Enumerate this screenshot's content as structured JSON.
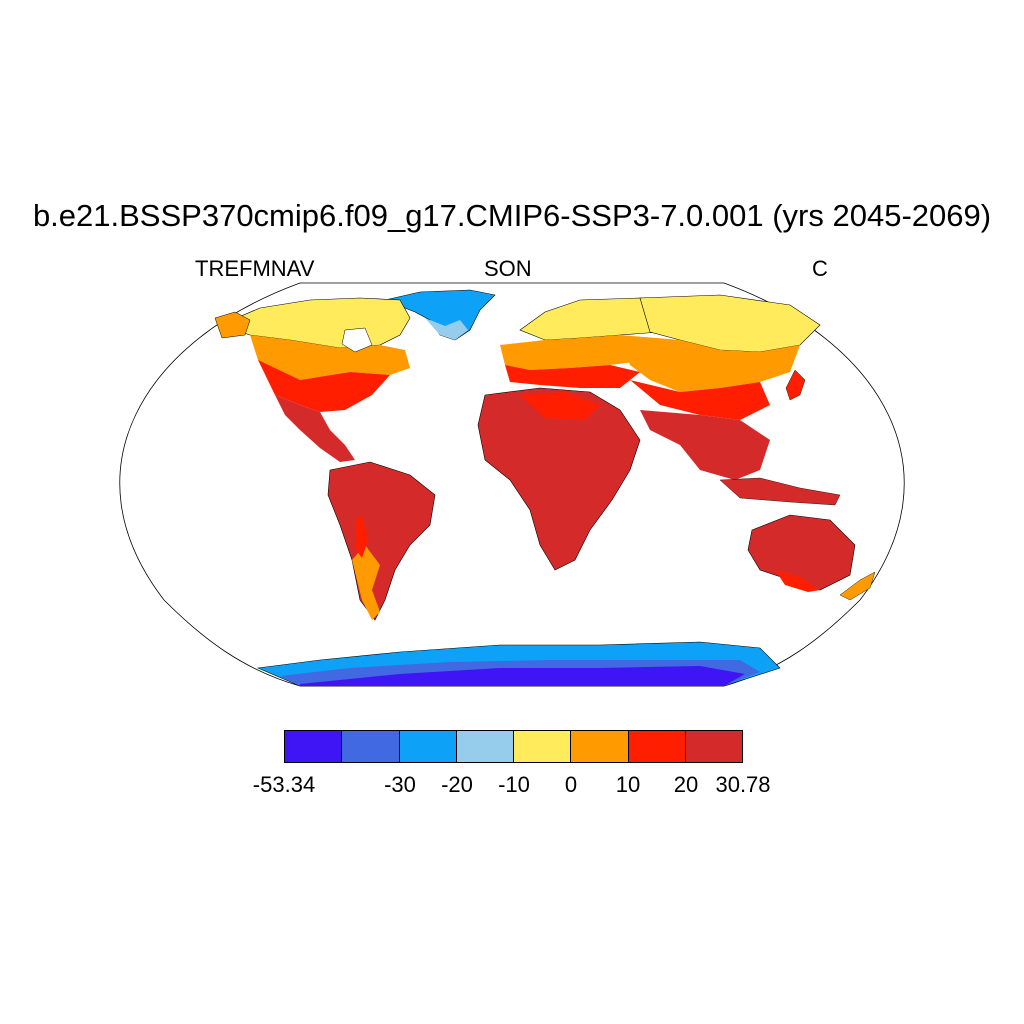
{
  "title": "b.e21.BSSP370cmip6.f09_g17.CMIP6-SSP3-7.0.001 (yrs 2045-2069)",
  "subtitles": {
    "left": "TREFMNAV",
    "center": "SON",
    "right": "C"
  },
  "colorbar": {
    "colors": [
      "#3f14f5",
      "#4169e1",
      "#0da2f7",
      "#97cdec",
      "#ffeb5c",
      "#ff9b00",
      "#ff1e00",
      "#d52a2a"
    ],
    "labels": [
      "-53.34",
      "-30",
      "-20",
      "-10",
      "0",
      "10",
      "20",
      "30.78"
    ]
  },
  "legend_values": {
    "min": -53.34,
    "max": 30.78,
    "levels": [
      -30,
      -20,
      -10,
      0,
      10,
      20
    ]
  }
}
